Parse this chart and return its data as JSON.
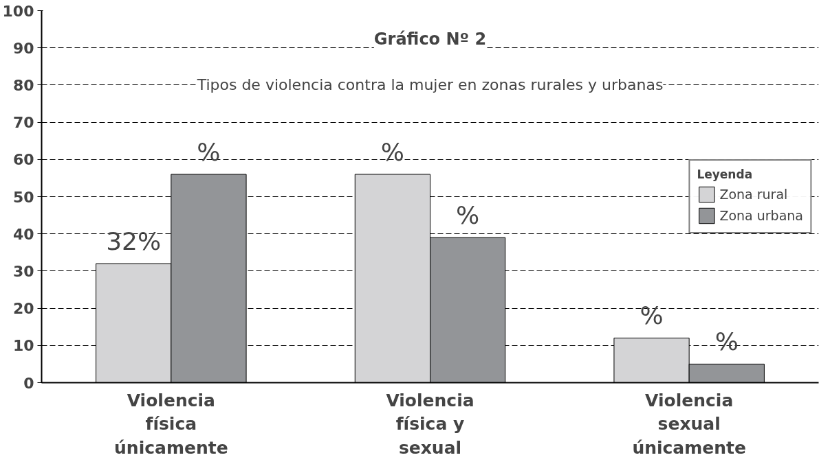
{
  "chart_data": {
    "type": "bar",
    "title": "Gráfico Nº 2",
    "subtitle": "Tipos de violencia contra la mujer en zonas rurales y urbanas",
    "categories": [
      "Violencia\nfísica\núnicamente",
      "Violencia\nfísica y\nsexual",
      "Violencia\nsexual\núnicamente"
    ],
    "series": [
      {
        "name": "Zona rural",
        "color": "#d4d4d6",
        "values": [
          32,
          56,
          12
        ],
        "value_labels": [
          "32%",
          "%",
          "%"
        ]
      },
      {
        "name": "Zona urbana",
        "color": "#939598",
        "values": [
          56,
          39,
          5
        ],
        "value_labels": [
          "%",
          "%",
          "%"
        ]
      }
    ],
    "legend_title": "Leyenda",
    "legend": "right",
    "grid": "y",
    "ylim": [
      0,
      100
    ],
    "yticks": [
      0,
      10,
      20,
      30,
      40,
      50,
      60,
      70,
      80,
      90,
      100
    ]
  }
}
